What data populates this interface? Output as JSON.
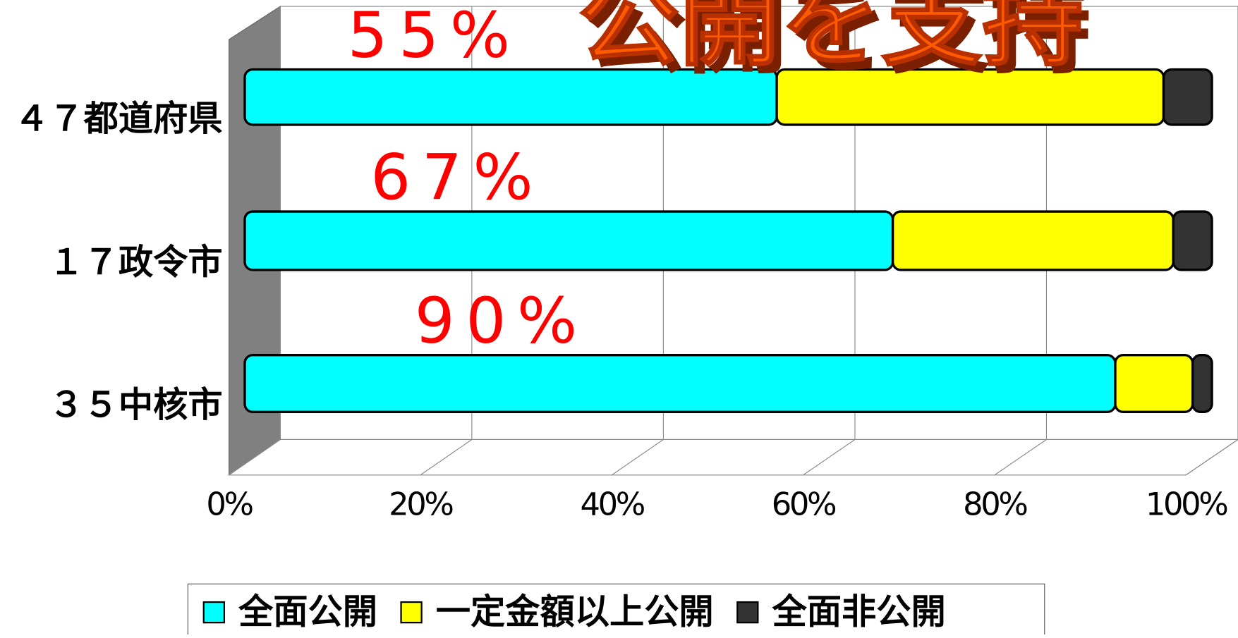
{
  "chart_data": {
    "type": "bar3d_stacked_horizontal",
    "annotation": "公開を支持",
    "categories": [
      "４７都道府県",
      "１７政令市",
      "３５中核市"
    ],
    "series": [
      {
        "name": "全面公開",
        "color": "#00ffff",
        "values": [
          55,
          67,
          90
        ],
        "value_labels": [
          "55%",
          "67%",
          "90%"
        ]
      },
      {
        "name": "一定金額以上公開",
        "color": "#ffff00",
        "values": [
          40,
          29,
          8
        ]
      },
      {
        "name": "全面非公開",
        "color": "#333333",
        "values": [
          5,
          4,
          2
        ]
      }
    ],
    "xlim": [
      0,
      100
    ],
    "xticks": [
      {
        "value": 0,
        "label": "0%"
      },
      {
        "value": 20,
        "label": "20%"
      },
      {
        "value": 40,
        "label": "40%"
      },
      {
        "value": 60,
        "label": "60%"
      },
      {
        "value": 80,
        "label": "80%"
      },
      {
        "value": 100,
        "label": "100%"
      }
    ],
    "grid": true,
    "legend": "bottom"
  }
}
